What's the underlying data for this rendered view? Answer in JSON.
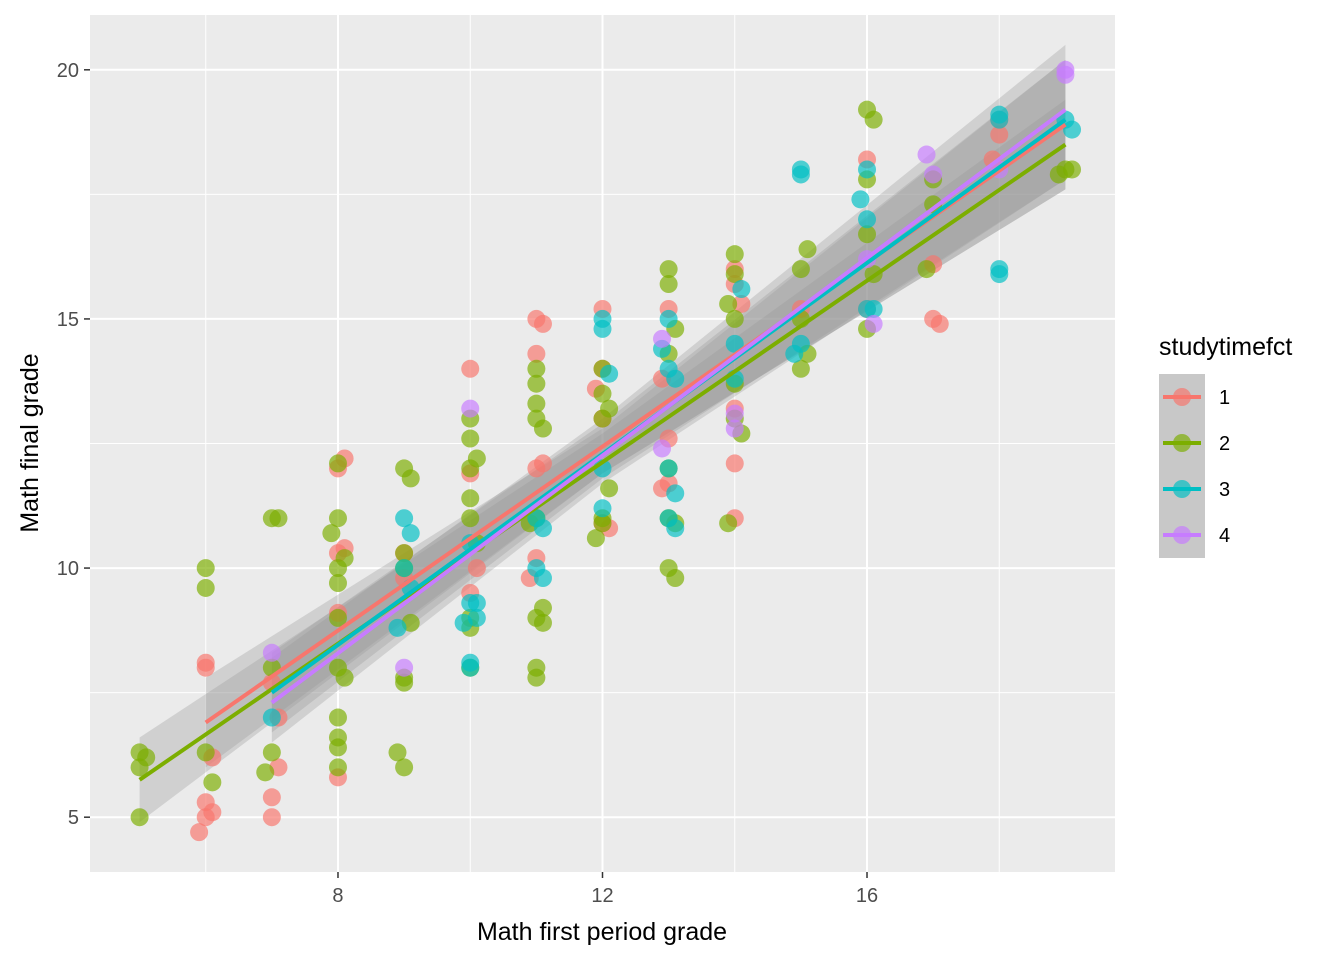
{
  "chart_data": {
    "type": "scatter",
    "xlabel": "Math first period grade",
    "ylabel": "Math final grade",
    "xlim": [
      4.25,
      19.75
    ],
    "ylim": [
      3.9,
      21.1
    ],
    "x_ticks": [
      8,
      12,
      16
    ],
    "x_tick_labels": [
      "8",
      "12",
      "16"
    ],
    "y_ticks": [
      5,
      10,
      15,
      20
    ],
    "y_tick_labels": [
      "5",
      "10",
      "15",
      "20"
    ],
    "grid": true,
    "legend": {
      "title": "studytimefct",
      "placement": "right",
      "entries": [
        "1",
        "2",
        "3",
        "4"
      ]
    },
    "colors": {
      "panel_background": "#ebebeb",
      "grid_line": "#ffffff",
      "ribbon": "#999999",
      "legend_key_background": "#c8c8c8"
    },
    "series": [
      {
        "name": "1",
        "color": "#F8766D",
        "fit": {
          "x": [
            6,
            19
          ],
          "y": [
            6.9,
            18.9
          ]
        },
        "ribbon": {
          "x": [
            6,
            12,
            19
          ],
          "lower": [
            6.0,
            11.9,
            17.6
          ],
          "upper": [
            7.8,
            12.8,
            20.2
          ]
        },
        "points": [
          [
            6,
            8.1
          ],
          [
            6,
            8.0
          ],
          [
            6.1,
            6.2
          ],
          [
            6,
            5.3
          ],
          [
            5.9,
            4.7
          ],
          [
            6.1,
            5.1
          ],
          [
            6,
            5.0
          ],
          [
            7,
            5.4
          ],
          [
            7,
            5.0
          ],
          [
            7.1,
            6.0
          ],
          [
            7,
            7.7
          ],
          [
            7.1,
            7.0
          ],
          [
            8,
            12.0
          ],
          [
            8.1,
            12.2
          ],
          [
            8,
            10.3
          ],
          [
            8.1,
            10.4
          ],
          [
            8,
            9.1
          ],
          [
            8,
            5.8
          ],
          [
            9,
            10.3
          ],
          [
            9,
            9.8
          ],
          [
            10,
            14.0
          ],
          [
            10,
            11.9
          ],
          [
            10.1,
            10.0
          ],
          [
            10,
            9.5
          ],
          [
            11,
            15.0
          ],
          [
            11,
            14.3
          ],
          [
            11.1,
            12.1
          ],
          [
            11,
            12.0
          ],
          [
            11,
            10.2
          ],
          [
            10.9,
            9.8
          ],
          [
            11.1,
            14.9
          ],
          [
            12,
            15.2
          ],
          [
            12,
            14.0
          ],
          [
            11.9,
            13.6
          ],
          [
            12,
            13.0
          ],
          [
            12.1,
            10.8
          ],
          [
            12,
            10.9
          ],
          [
            13,
            15.2
          ],
          [
            12.9,
            13.8
          ],
          [
            13,
            12.6
          ],
          [
            12.9,
            11.6
          ],
          [
            13,
            11.7
          ],
          [
            14,
            16.0
          ],
          [
            14,
            15.7
          ],
          [
            14.1,
            15.3
          ],
          [
            14,
            13.2
          ],
          [
            14,
            12.1
          ],
          [
            14,
            11.0
          ],
          [
            15,
            15.2
          ],
          [
            16,
            18.2
          ],
          [
            16,
            15.2
          ],
          [
            17,
            16.1
          ],
          [
            17,
            15.0
          ],
          [
            17.1,
            14.9
          ],
          [
            18,
            19.0
          ],
          [
            18,
            18.7
          ],
          [
            17.9,
            18.2
          ]
        ]
      },
      {
        "name": "2",
        "color": "#7CAE00",
        "fit": {
          "x": [
            5,
            19
          ],
          "y": [
            5.75,
            18.5
          ]
        },
        "ribbon": {
          "x": [
            5,
            12,
            19
          ],
          "lower": [
            4.9,
            11.9,
            17.6
          ],
          "upper": [
            6.6,
            12.7,
            19.4
          ]
        },
        "points": [
          [
            5,
            6.3
          ],
          [
            5.1,
            6.2
          ],
          [
            5,
            6.0
          ],
          [
            5,
            5.0
          ],
          [
            6,
            10.0
          ],
          [
            6,
            9.6
          ],
          [
            6,
            6.3
          ],
          [
            6.1,
            5.7
          ],
          [
            7,
            11.0
          ],
          [
            7.1,
            11.0
          ],
          [
            7,
            8.0
          ],
          [
            7,
            6.3
          ],
          [
            6.9,
            5.9
          ],
          [
            8,
            12.1
          ],
          [
            8,
            11.0
          ],
          [
            7.9,
            10.7
          ],
          [
            8,
            10.0
          ],
          [
            8.1,
            10.2
          ],
          [
            8,
            9.7
          ],
          [
            8,
            9.0
          ],
          [
            8,
            8.0
          ],
          [
            8.1,
            7.8
          ],
          [
            8,
            7.0
          ],
          [
            8,
            6.6
          ],
          [
            8,
            6.4
          ],
          [
            8,
            6.0
          ],
          [
            9,
            12.0
          ],
          [
            9.1,
            11.8
          ],
          [
            9,
            10.3
          ],
          [
            9,
            10.0
          ],
          [
            9.1,
            8.9
          ],
          [
            9,
            7.8
          ],
          [
            9,
            7.7
          ],
          [
            8.9,
            6.3
          ],
          [
            9,
            6.0
          ],
          [
            10,
            13.0
          ],
          [
            10,
            12.6
          ],
          [
            10,
            12.0
          ],
          [
            10.1,
            12.2
          ],
          [
            10,
            11.4
          ],
          [
            10,
            11.0
          ],
          [
            10.1,
            10.5
          ],
          [
            10,
            9.0
          ],
          [
            10,
            8.8
          ],
          [
            10,
            8.0
          ],
          [
            11,
            14.0
          ],
          [
            11,
            13.7
          ],
          [
            11,
            13.3
          ],
          [
            11,
            13.0
          ],
          [
            11.1,
            12.8
          ],
          [
            11,
            11.0
          ],
          [
            10.9,
            10.9
          ],
          [
            11,
            9.0
          ],
          [
            11.1,
            9.2
          ],
          [
            11.1,
            8.9
          ],
          [
            11,
            8.0
          ],
          [
            11,
            7.8
          ],
          [
            12,
            14.0
          ],
          [
            12,
            13.5
          ],
          [
            12,
            13.0
          ],
          [
            12.1,
            13.2
          ],
          [
            12,
            11.0
          ],
          [
            11.9,
            10.6
          ],
          [
            12.1,
            11.6
          ],
          [
            12,
            10.9
          ],
          [
            13,
            16.0
          ],
          [
            13,
            15.7
          ],
          [
            13.1,
            14.8
          ],
          [
            13,
            14.3
          ],
          [
            13,
            12.0
          ],
          [
            13,
            11.0
          ],
          [
            13.1,
            10.9
          ],
          [
            13,
            10.0
          ],
          [
            13.1,
            9.8
          ],
          [
            14,
            16.3
          ],
          [
            14,
            15.9
          ],
          [
            14,
            15.0
          ],
          [
            13.9,
            15.3
          ],
          [
            14,
            13.7
          ],
          [
            14,
            13.0
          ],
          [
            14.1,
            12.7
          ],
          [
            13.9,
            10.9
          ],
          [
            15,
            16.0
          ],
          [
            15,
            15.0
          ],
          [
            15.1,
            16.4
          ],
          [
            15,
            14.0
          ],
          [
            15.1,
            14.3
          ],
          [
            16,
            19.2
          ],
          [
            16.1,
            19.0
          ],
          [
            16,
            17.8
          ],
          [
            16,
            16.7
          ],
          [
            16.1,
            15.9
          ],
          [
            16,
            14.8
          ],
          [
            17,
            17.8
          ],
          [
            17,
            17.3
          ],
          [
            16.9,
            16.0
          ],
          [
            19,
            18.0
          ],
          [
            18.9,
            17.9
          ],
          [
            19.1,
            18.0
          ]
        ]
      },
      {
        "name": "3",
        "color": "#00BFC4",
        "fit": {
          "x": [
            7,
            19
          ],
          "y": [
            7.5,
            19.0
          ]
        },
        "ribbon": {
          "x": [
            7,
            12,
            19
          ],
          "lower": [
            6.7,
            11.8,
            17.8
          ],
          "upper": [
            8.3,
            12.9,
            20.2
          ]
        },
        "points": [
          [
            7,
            7.0
          ],
          [
            9,
            11.0
          ],
          [
            9.1,
            10.7
          ],
          [
            9,
            10.0
          ],
          [
            9.1,
            9.6
          ],
          [
            8.9,
            8.8
          ],
          [
            10,
            10.5
          ],
          [
            10.1,
            9.3
          ],
          [
            10,
            9.3
          ],
          [
            10.1,
            9.0
          ],
          [
            10,
            8.1
          ],
          [
            9.9,
            8.9
          ],
          [
            10,
            8.0
          ],
          [
            11,
            11.0
          ],
          [
            11.1,
            10.8
          ],
          [
            11,
            10.0
          ],
          [
            11.1,
            9.8
          ],
          [
            12,
            15.0
          ],
          [
            12,
            14.8
          ],
          [
            12.1,
            13.9
          ],
          [
            12,
            12.0
          ],
          [
            12,
            11.2
          ],
          [
            13,
            15.0
          ],
          [
            12.9,
            14.4
          ],
          [
            13,
            14.0
          ],
          [
            13.1,
            13.8
          ],
          [
            13,
            12.0
          ],
          [
            13.1,
            11.5
          ],
          [
            13,
            11.0
          ],
          [
            13.1,
            10.8
          ],
          [
            14,
            14.5
          ],
          [
            14,
            13.8
          ],
          [
            14.1,
            15.6
          ],
          [
            15,
            18.0
          ],
          [
            15,
            17.9
          ],
          [
            15,
            14.5
          ],
          [
            14.9,
            14.3
          ],
          [
            16,
            18.0
          ],
          [
            15.9,
            17.4
          ],
          [
            16,
            17.0
          ],
          [
            16,
            15.2
          ],
          [
            16.1,
            15.2
          ],
          [
            18,
            19.1
          ],
          [
            18,
            19.0
          ],
          [
            18,
            16.0
          ],
          [
            18,
            15.9
          ],
          [
            19,
            19.0
          ],
          [
            19.1,
            18.8
          ]
        ]
      },
      {
        "name": "4",
        "color": "#C77CFF",
        "fit": {
          "x": [
            7,
            19
          ],
          "y": [
            7.3,
            19.2
          ]
        },
        "ribbon": {
          "x": [
            7,
            12,
            19
          ],
          "lower": [
            6.5,
            11.7,
            17.8
          ],
          "upper": [
            8.2,
            13.0,
            20.5
          ]
        },
        "points": [
          [
            7,
            8.3
          ],
          [
            9,
            8.0
          ],
          [
            10,
            13.2
          ],
          [
            12.9,
            14.6
          ],
          [
            12.9,
            12.4
          ],
          [
            14,
            13.1
          ],
          [
            14,
            12.8
          ],
          [
            16.1,
            14.9
          ],
          [
            16,
            16.2
          ],
          [
            16.9,
            18.3
          ],
          [
            17,
            17.9
          ],
          [
            18,
            18.0
          ],
          [
            19,
            20.0
          ],
          [
            19,
            19.9
          ]
        ]
      }
    ]
  }
}
